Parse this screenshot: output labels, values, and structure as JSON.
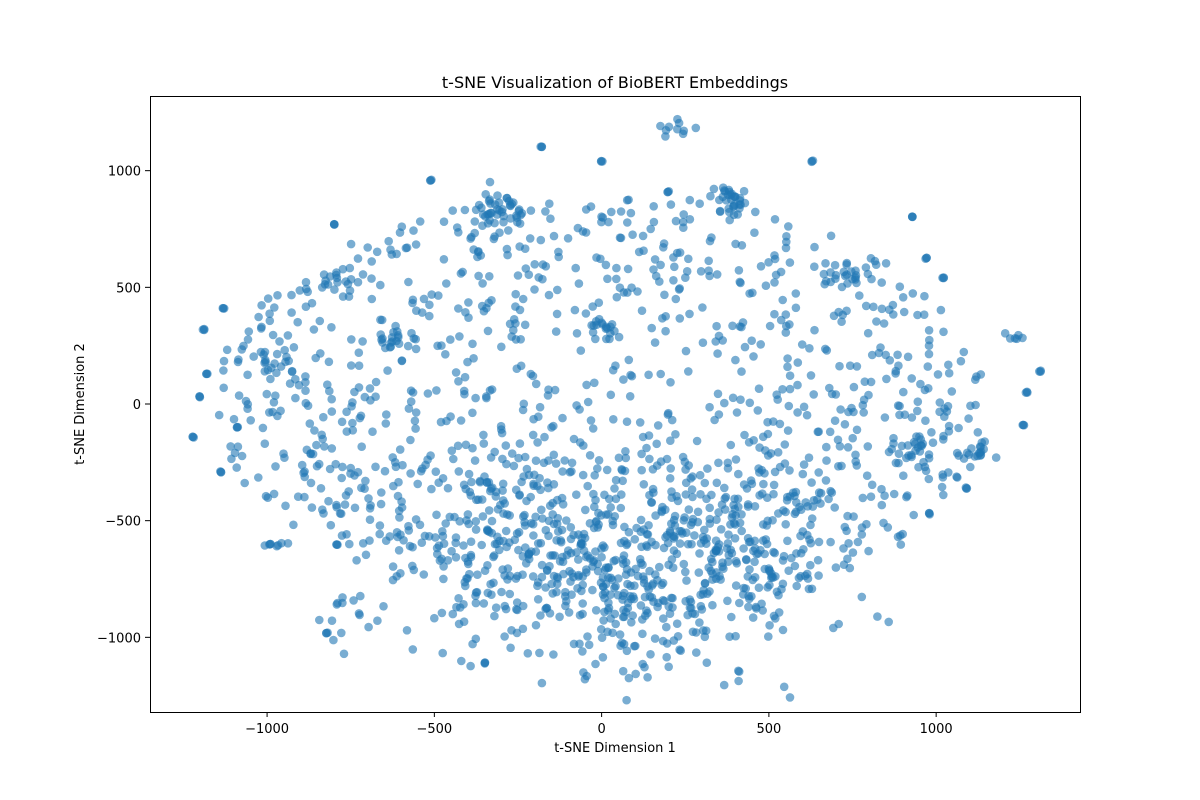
{
  "chart_data": {
    "type": "scatter",
    "title": "t-SNE Visualization of BioBERT Embeddings",
    "xlabel": "t-SNE Dimension 1",
    "ylabel": "t-SNE Dimension 2",
    "xlim": [
      -1350,
      1430
    ],
    "ylim": [
      -1320,
      1320
    ],
    "xticks": [
      -1000,
      -500,
      0,
      500,
      1000
    ],
    "xtick_labels": [
      "−1000",
      "−500",
      "0",
      "500",
      "1000"
    ],
    "yticks": [
      -1000,
      -500,
      0,
      500,
      1000
    ],
    "ytick_labels": [
      "−1000",
      "−500",
      "0",
      "500",
      "1000"
    ],
    "grid": false,
    "marker_color": "#1f77b4",
    "marker_alpha": 0.6,
    "approximate_point_count": 1700,
    "clusters": [
      {
        "center": [
          -300,
          830
        ],
        "spread": [
          50,
          40
        ],
        "n": 45
      },
      {
        "center": [
          390,
          880
        ],
        "spread": [
          35,
          28
        ],
        "n": 30
      },
      {
        "center": [
          -800,
          530
        ],
        "spread": [
          30,
          25
        ],
        "n": 16
      },
      {
        "center": [
          -620,
          290
        ],
        "spread": [
          35,
          25
        ],
        "n": 18
      },
      {
        "center": [
          -960,
          140
        ],
        "spread": [
          35,
          30
        ],
        "n": 16
      },
      {
        "center": [
          0,
          320
        ],
        "spread": [
          30,
          22
        ],
        "n": 14
      },
      {
        "center": [
          930,
          -210
        ],
        "spread": [
          40,
          35
        ],
        "n": 22
      },
      {
        "center": [
          1110,
          -200
        ],
        "spread": [
          30,
          25
        ],
        "n": 18
      },
      {
        "center": [
          750,
          550
        ],
        "spread": [
          40,
          30
        ],
        "n": 16
      },
      {
        "center": [
          230,
          1180
        ],
        "spread": [
          30,
          18
        ],
        "n": 10
      },
      {
        "center": [
          -740,
          -900
        ],
        "spread": [
          40,
          45
        ],
        "n": 12
      },
      {
        "center": [
          1240,
          290
        ],
        "spread": [
          25,
          15
        ],
        "n": 6
      },
      {
        "center": [
          -980,
          -600
        ],
        "spread": [
          15,
          10
        ],
        "n": 5
      },
      {
        "center": [
          100,
          -800
        ],
        "spread": [
          260,
          200
        ],
        "n": 280
      },
      {
        "center": [
          -200,
          -500
        ],
        "spread": [
          260,
          250
        ],
        "n": 240
      },
      {
        "center": [
          450,
          -600
        ],
        "spread": [
          170,
          200
        ],
        "n": 140
      }
    ],
    "field": {
      "center": [
        0,
        0
      ],
      "semi_axes": [
        1160,
        900
      ],
      "n": 1000
    },
    "outliers": [
      [
        -1220,
        -140
      ],
      [
        -1190,
        320
      ],
      [
        -1130,
        410
      ],
      [
        -1140,
        -290
      ],
      [
        -1200,
        30
      ],
      [
        -990,
        -600
      ],
      [
        -790,
        -600
      ],
      [
        -350,
        -1110
      ],
      [
        -180,
        1100
      ],
      [
        0,
        1040
      ],
      [
        630,
        1040
      ],
      [
        930,
        800
      ],
      [
        200,
        910
      ],
      [
        1310,
        140
      ],
      [
        1270,
        50
      ],
      [
        1260,
        -90
      ],
      [
        980,
        -470
      ],
      [
        -800,
        770
      ],
      [
        -510,
        960
      ],
      [
        970,
        625
      ],
      [
        1090,
        -360
      ],
      [
        1020,
        540
      ],
      [
        -1090,
        -100
      ],
      [
        -1180,
        130
      ],
      [
        -820,
        -980
      ]
    ]
  }
}
